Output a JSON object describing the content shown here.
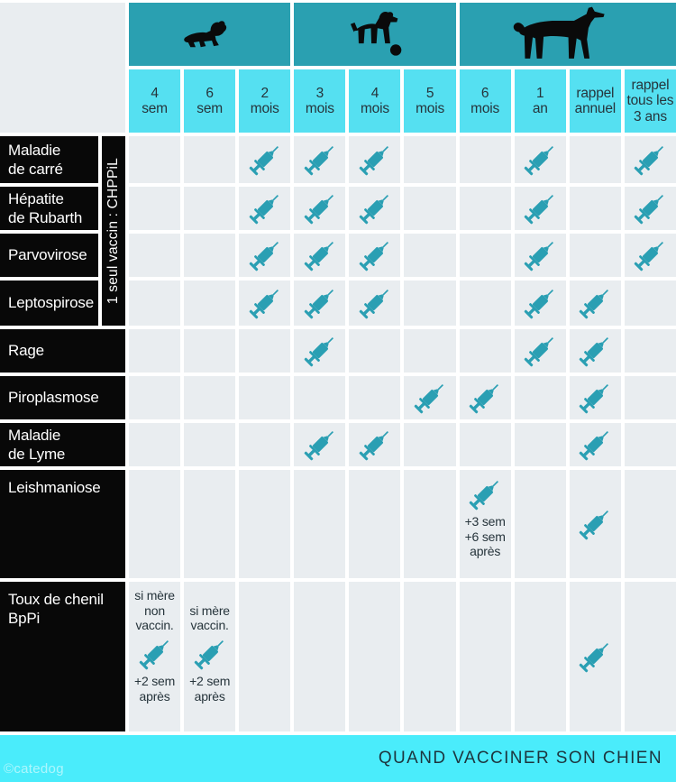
{
  "title": "QUAND VACCINER SON CHIEN",
  "watermark": "©catedog",
  "chppil_label": "1 seul vaccin : CHPPiL",
  "colors": {
    "band_teal": "#2aa0b1",
    "header_cyan": "#55e0f1",
    "footer_cyan": "#4aecfb",
    "cell_gray": "#e9edf0",
    "syringe_teal": "#2a9fb3",
    "label_black": "#080808",
    "text_dark": "#26343b"
  },
  "chart_data": {
    "type": "table",
    "title": "QUAND VACCINER SON CHIEN",
    "age_groups": [
      {
        "icon": "puppy-crawling-icon",
        "span": 3
      },
      {
        "icon": "puppy-playing-icon",
        "span": 3
      },
      {
        "icon": "adult-dog-icon",
        "span": 4
      }
    ],
    "columns": [
      "4 sem",
      "6 sem",
      "2 mois",
      "3 mois",
      "4 mois",
      "5 mois",
      "6 mois",
      "1 an",
      "rappel annuel",
      "rappel tous les 3 ans"
    ],
    "column_lines": [
      [
        "4",
        "sem"
      ],
      [
        "6",
        "sem"
      ],
      [
        "2",
        "mois"
      ],
      [
        "3",
        "mois"
      ],
      [
        "4",
        "mois"
      ],
      [
        "5",
        "mois"
      ],
      [
        "6",
        "mois"
      ],
      [
        "1",
        "an"
      ],
      [
        "rappel",
        "annuel"
      ],
      [
        "rappel",
        "tous les",
        "3 ans"
      ]
    ],
    "rows": [
      {
        "label": "Maladie de carré",
        "label_lines": [
          "Maladie",
          "de carré"
        ],
        "chppil": true,
        "cells": {
          "2": {
            "s": true
          },
          "3": {
            "s": true
          },
          "4": {
            "s": true
          },
          "7": {
            "s": true
          },
          "9": {
            "s": true
          }
        }
      },
      {
        "label": "Hépatite de Rubarth",
        "label_lines": [
          "Hépatite",
          "de Rubarth"
        ],
        "chppil": true,
        "cells": {
          "2": {
            "s": true
          },
          "3": {
            "s": true
          },
          "4": {
            "s": true
          },
          "7": {
            "s": true
          },
          "9": {
            "s": true
          }
        }
      },
      {
        "label": "Parvovirose",
        "label_lines": [
          "Parvovirose"
        ],
        "chppil": true,
        "cells": {
          "2": {
            "s": true
          },
          "3": {
            "s": true
          },
          "4": {
            "s": true
          },
          "7": {
            "s": true
          },
          "9": {
            "s": true
          }
        }
      },
      {
        "label": "Leptospirose",
        "label_lines": [
          "Leptospirose"
        ],
        "chppil": true,
        "cells": {
          "2": {
            "s": true
          },
          "3": {
            "s": true
          },
          "4": {
            "s": true
          },
          "7": {
            "s": true
          },
          "8": {
            "s": true
          }
        }
      },
      {
        "label": "Rage",
        "label_lines": [
          "Rage"
        ],
        "cells": {
          "3": {
            "s": true
          },
          "7": {
            "s": true
          },
          "8": {
            "s": true
          }
        }
      },
      {
        "label": "Piroplasmose",
        "label_lines": [
          "Piroplasmose"
        ],
        "cells": {
          "5": {
            "s": true
          },
          "6": {
            "s": true
          },
          "8": {
            "s": true
          }
        }
      },
      {
        "label": "Maladie de Lyme",
        "label_lines": [
          "Maladie",
          "de Lyme"
        ],
        "cells": {
          "3": {
            "s": true
          },
          "4": {
            "s": true
          },
          "8": {
            "s": true
          }
        }
      },
      {
        "label": "Leishmaniose",
        "label_lines": [
          "Leishmaniose"
        ],
        "top_align": true,
        "cells": {
          "6": {
            "s": true,
            "below": [
              "+3 sem",
              "+6 sem",
              "après"
            ]
          },
          "8": {
            "s": true
          }
        }
      },
      {
        "label": "Toux de chenil BpPi",
        "label_lines": [
          "Toux de chenil",
          "BpPi"
        ],
        "top_align": true,
        "cells": {
          "0": {
            "above": [
              "si mère",
              "non",
              "vaccin."
            ],
            "s": true,
            "below": [
              "+2 sem",
              "après"
            ]
          },
          "1": {
            "above": [
              "si mère",
              "vaccin."
            ],
            "s": true,
            "below": [
              "+2 sem",
              "après"
            ]
          },
          "8": {
            "s": true
          }
        }
      }
    ]
  }
}
